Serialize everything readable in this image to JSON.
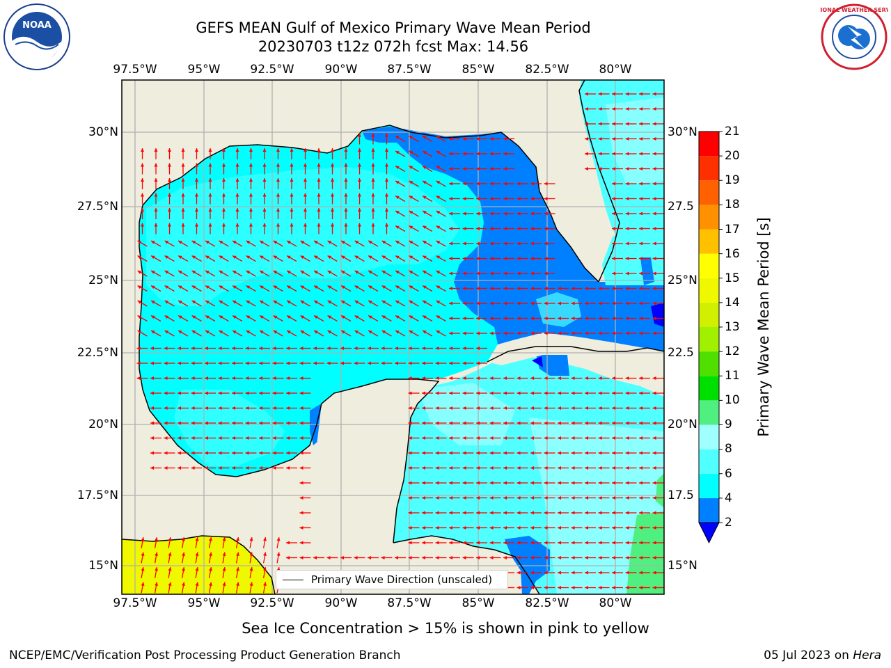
{
  "header": {
    "title_line1": "GEFS MEAN Gulf of Mexico Primary Wave Mean Period",
    "title_line2": "20230703 t12z 072h fcst   Max: 14.56"
  },
  "logos": {
    "left": "NOAA",
    "right": "NATIONAL WEATHER SERVICE"
  },
  "map": {
    "lon_ticks": [
      "97.5°W",
      "95°W",
      "92.5°W",
      "90°W",
      "87.5°W",
      "85°W",
      "82.5°W",
      "80°W"
    ],
    "lat_ticks_left": [
      "30°N",
      "27.5°N",
      "25°N",
      "22.5°N",
      "20°N",
      "17.5°N",
      "15°N"
    ],
    "lat_ticks_right": [
      "30°N",
      "27.5",
      "25°N",
      "22.5",
      "20°N",
      "17.5",
      "15°N"
    ],
    "lon_range": [
      -98,
      -78.2
    ],
    "lat_range": [
      14,
      31.6
    ],
    "land_color": "#efedde",
    "arrow_color": "#ff0000",
    "legend_label": "Primary Wave Direction (unscaled)"
  },
  "colorbar": {
    "label": "Primary Wave Mean Period [s]",
    "ticks": [
      "2",
      "4",
      "6",
      "8",
      "9",
      "10",
      "11",
      "12",
      "13",
      "14",
      "15",
      "16",
      "17",
      "18",
      "19",
      "20",
      "21"
    ],
    "bins": [
      {
        "from": 2,
        "to": 4,
        "color": "#0080ff"
      },
      {
        "from": 4,
        "to": 6,
        "color": "#00ffff"
      },
      {
        "from": 6,
        "to": 8,
        "color": "#50ffff"
      },
      {
        "from": 8,
        "to": 9,
        "color": "#a0ffff"
      },
      {
        "from": 9,
        "to": 10,
        "color": "#50f080"
      },
      {
        "from": 10,
        "to": 11,
        "color": "#00e000"
      },
      {
        "from": 11,
        "to": 12,
        "color": "#50e000"
      },
      {
        "from": 12,
        "to": 13,
        "color": "#a0f000"
      },
      {
        "from": 13,
        "to": 14,
        "color": "#d0f000"
      },
      {
        "from": 14,
        "to": 15,
        "color": "#f0f800"
      },
      {
        "from": 15,
        "to": 16,
        "color": "#ffff00"
      },
      {
        "from": 16,
        "to": 17,
        "color": "#ffc000"
      },
      {
        "from": 17,
        "to": 18,
        "color": "#ff9000"
      },
      {
        "from": 18,
        "to": 19,
        "color": "#ff6000"
      },
      {
        "from": 19,
        "to": 20,
        "color": "#ff3000"
      },
      {
        "from": 20,
        "to": 21,
        "color": "#ff0000"
      }
    ],
    "under_color": "#0000ff"
  },
  "footer": {
    "ice_note": "Sea Ice Concentration > 15% is shown in pink to yellow",
    "left": "NCEP/EMC/Verification Post Processing Product Generation Branch",
    "right_date": "05 Jul 2023 on ",
    "right_host": "Hera"
  }
}
